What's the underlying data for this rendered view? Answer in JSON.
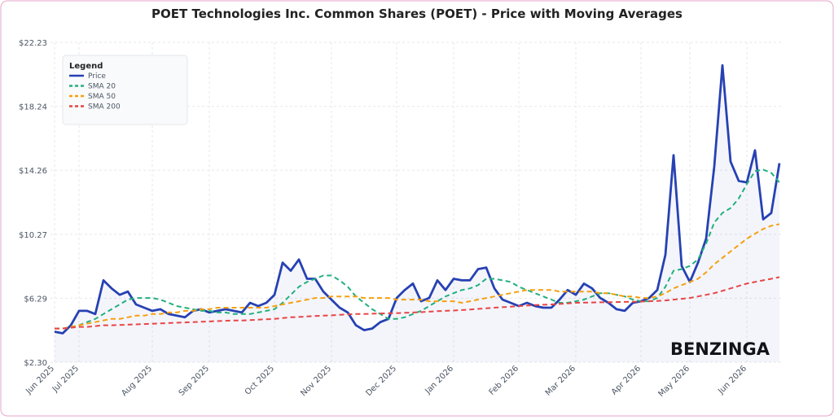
{
  "chart_data": {
    "type": "line",
    "title": "POET Technologies Inc. Common Shares (POET) - Price with Moving Averages",
    "watermark": "BENZINGA",
    "legend_title": "Legend",
    "legend_position": "upper left",
    "grid": true,
    "categories": [
      "Jun 2025",
      null,
      null,
      "Jul 2025",
      null,
      null,
      null,
      null,
      null,
      null,
      null,
      null,
      "Aug 2025",
      null,
      null,
      null,
      null,
      null,
      null,
      "Sep 2025",
      null,
      null,
      null,
      null,
      null,
      null,
      null,
      "Oct 2025",
      null,
      null,
      null,
      null,
      null,
      null,
      "Nov 2025",
      null,
      null,
      null,
      null,
      null,
      null,
      null,
      "Dec 2025",
      null,
      null,
      null,
      null,
      null,
      null,
      "Jan 2026",
      null,
      null,
      null,
      null,
      null,
      null,
      null,
      "Feb 2026",
      null,
      null,
      null,
      null,
      null,
      null,
      "Mar 2026",
      null,
      null,
      null,
      null,
      null,
      null,
      null,
      "Apr 2026",
      null,
      null,
      null,
      null,
      null,
      "May 2026",
      null,
      null,
      null,
      null,
      null,
      null,
      "Jun 2026",
      null,
      null,
      null,
      null
    ],
    "ylim": [
      2.3,
      22.23
    ],
    "yticks": [
      {
        "value": 2.3,
        "label": "$2.30"
      },
      {
        "value": 6.29,
        "label": "$6.29"
      },
      {
        "value": 10.27,
        "label": "$10.27"
      },
      {
        "value": 14.26,
        "label": "$14.26"
      },
      {
        "value": 18.24,
        "label": "$18.24"
      },
      {
        "value": 22.23,
        "label": "$22.23"
      }
    ],
    "series": [
      {
        "name": "Price",
        "color": "#2641b3",
        "dash": false,
        "fill": true,
        "values": [
          4.2,
          4.1,
          4.6,
          5.5,
          5.5,
          5.3,
          7.4,
          6.9,
          6.5,
          6.7,
          5.9,
          5.7,
          5.5,
          5.6,
          5.3,
          5.2,
          5.1,
          5.5,
          5.6,
          5.4,
          5.5,
          5.6,
          5.5,
          5.4,
          6.0,
          5.8,
          6.0,
          6.5,
          8.5,
          8.0,
          8.7,
          7.5,
          7.5,
          6.7,
          6.2,
          5.7,
          5.4,
          4.6,
          4.3,
          4.4,
          4.8,
          5.0,
          6.3,
          6.8,
          7.2,
          6.1,
          6.3,
          7.4,
          6.8,
          7.5,
          7.4,
          7.4,
          8.1,
          8.2,
          6.9,
          6.2,
          6.0,
          5.8,
          6.0,
          5.8,
          5.7,
          5.7,
          6.2,
          6.8,
          6.5,
          7.2,
          6.9,
          6.3,
          6.0,
          5.6,
          5.5,
          6.0,
          6.1,
          6.3,
          6.8,
          9.0,
          15.2,
          8.3,
          7.3,
          8.5,
          10.0,
          14.5,
          20.8,
          14.8,
          13.6,
          13.5,
          15.5,
          11.2,
          11.6,
          14.7
        ]
      },
      {
        "name": "SMA 20",
        "color": "#22b07d",
        "dash": true,
        "fill": false,
        "values": [
          4.4,
          4.4,
          4.5,
          4.6,
          4.8,
          5.0,
          5.3,
          5.6,
          5.9,
          6.2,
          6.3,
          6.3,
          6.3,
          6.2,
          6.0,
          5.8,
          5.7,
          5.6,
          5.5,
          5.5,
          5.4,
          5.4,
          5.3,
          5.3,
          5.3,
          5.4,
          5.5,
          5.6,
          6.0,
          6.5,
          7.0,
          7.3,
          7.5,
          7.7,
          7.7,
          7.4,
          7.0,
          6.4,
          6.0,
          5.6,
          5.3,
          5.0,
          5.0,
          5.1,
          5.3,
          5.5,
          5.8,
          6.1,
          6.4,
          6.6,
          6.8,
          6.9,
          7.1,
          7.5,
          7.5,
          7.4,
          7.3,
          7.0,
          6.8,
          6.6,
          6.4,
          6.2,
          6.0,
          6.0,
          6.1,
          6.2,
          6.4,
          6.6,
          6.6,
          6.5,
          6.4,
          6.2,
          6.1,
          6.1,
          6.3,
          7.0,
          8.0,
          8.1,
          8.3,
          8.7,
          9.7,
          11.0,
          11.6,
          11.9,
          12.5,
          13.4,
          14.2,
          14.3,
          14.1,
          13.5
        ]
      },
      {
        "name": "SMA 50",
        "color": "#f5a00f",
        "dash": true,
        "fill": false,
        "values": [
          4.4,
          4.4,
          4.5,
          4.6,
          4.7,
          4.8,
          4.9,
          5.0,
          5.0,
          5.1,
          5.2,
          5.2,
          5.3,
          5.3,
          5.4,
          5.4,
          5.5,
          5.5,
          5.6,
          5.6,
          5.7,
          5.7,
          5.7,
          5.7,
          5.7,
          5.7,
          5.7,
          5.8,
          5.9,
          6.0,
          6.1,
          6.2,
          6.3,
          6.3,
          6.4,
          6.4,
          6.4,
          6.4,
          6.3,
          6.3,
          6.3,
          6.3,
          6.2,
          6.2,
          6.2,
          6.2,
          6.1,
          6.1,
          6.1,
          6.1,
          6.0,
          6.1,
          6.2,
          6.3,
          6.4,
          6.5,
          6.6,
          6.7,
          6.8,
          6.8,
          6.8,
          6.8,
          6.7,
          6.7,
          6.7,
          6.7,
          6.7,
          6.6,
          6.6,
          6.5,
          6.4,
          6.4,
          6.3,
          6.3,
          6.4,
          6.6,
          6.9,
          7.1,
          7.3,
          7.5,
          7.9,
          8.4,
          8.8,
          9.2,
          9.6,
          10.0,
          10.3,
          10.6,
          10.8,
          10.9
        ]
      },
      {
        "name": "SMA 200",
        "color": "#e84545",
        "dash": true,
        "fill": false,
        "values": [
          4.4,
          4.4,
          4.45,
          4.5,
          4.5,
          4.55,
          4.6,
          4.6,
          4.62,
          4.64,
          4.66,
          4.68,
          4.7,
          4.72,
          4.74,
          4.76,
          4.78,
          4.8,
          4.82,
          4.84,
          4.86,
          4.88,
          4.9,
          4.9,
          4.92,
          4.95,
          4.98,
          5.0,
          5.05,
          5.1,
          5.12,
          5.15,
          5.18,
          5.2,
          5.22,
          5.25,
          5.28,
          5.3,
          5.3,
          5.32,
          5.34,
          5.35,
          5.36,
          5.38,
          5.4,
          5.42,
          5.45,
          5.48,
          5.5,
          5.52,
          5.55,
          5.58,
          5.62,
          5.66,
          5.7,
          5.73,
          5.76,
          5.8,
          5.83,
          5.86,
          5.88,
          5.9,
          5.93,
          5.96,
          6.0,
          6.01,
          6.02,
          6.03,
          6.04,
          6.05,
          6.06,
          6.07,
          6.08,
          6.1,
          6.12,
          6.15,
          6.2,
          6.25,
          6.3,
          6.4,
          6.5,
          6.6,
          6.75,
          6.9,
          7.05,
          7.2,
          7.3,
          7.4,
          7.5,
          7.6
        ]
      }
    ]
  }
}
